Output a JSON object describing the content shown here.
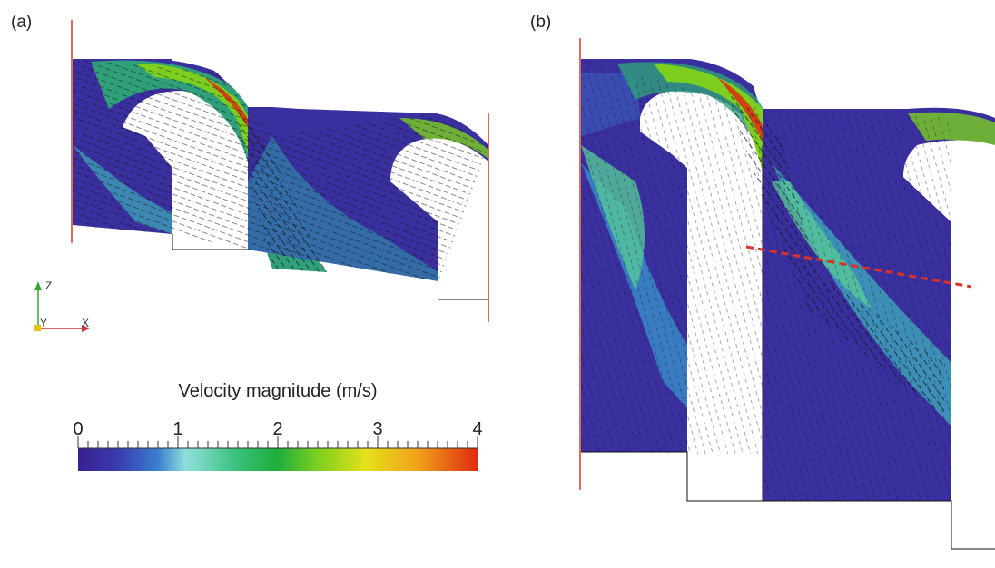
{
  "panels": {
    "a": "(a)",
    "b": "(b)"
  },
  "triad": {
    "z": "Z",
    "y": "Y",
    "x": "X"
  },
  "colorbar": {
    "title": "Velocity magnitude (m/s)",
    "ticks": [
      "0",
      "1",
      "2",
      "3",
      "4"
    ],
    "min": 0,
    "max": 4,
    "colors": [
      "#3b1f8f",
      "#3a56c7",
      "#8fe0dc",
      "#1fae3b",
      "#7ccf1f",
      "#e5e01a",
      "#f0a21a",
      "#e02b10"
    ]
  },
  "colors": {
    "boundary_red": "#d83a2a",
    "section_line": "#d9322a",
    "wall": "#111111"
  }
}
